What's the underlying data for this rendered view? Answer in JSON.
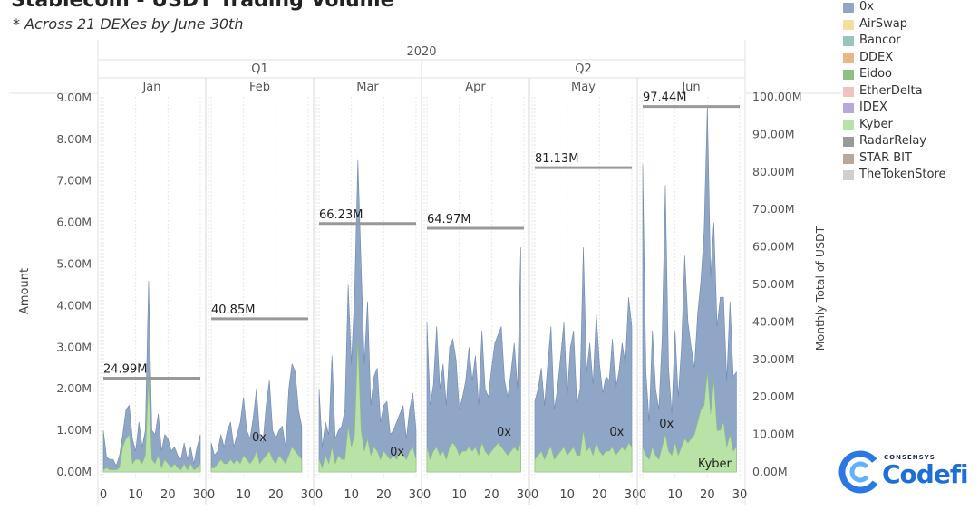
{
  "title": "Stablecoin - USDT Trading Volume",
  "subtitle": "* Across 21 DEXes by June 30th",
  "legend": [
    {
      "label": "0x",
      "color": "#8fa6c7"
    },
    {
      "label": "AirSwap",
      "color": "#f3e0a0"
    },
    {
      "label": "Bancor",
      "color": "#99c3bd"
    },
    {
      "label": "DDEX",
      "color": "#e9b787"
    },
    {
      "label": "Eidoo",
      "color": "#8fbf86"
    },
    {
      "label": "EtherDelta",
      "color": "#f2c2c0"
    },
    {
      "label": "IDEX",
      "color": "#b8a8da"
    },
    {
      "label": "Kyber",
      "color": "#b8e2a6"
    },
    {
      "label": "RadarRelay",
      "color": "#9a9a9a"
    },
    {
      "label": "STAR BIT",
      "color": "#b9a799"
    },
    {
      "label": "TheTokenStore",
      "color": "#cfcfcf"
    }
  ],
  "logo": {
    "top": "CONSENSYS",
    "name": "Codefi"
  },
  "chart_data": {
    "type": "area",
    "year": "2020",
    "quarters": [
      "Q1",
      "Q2"
    ],
    "months": [
      "Jan",
      "Feb",
      "Mar",
      "Apr",
      "May",
      "Jun"
    ],
    "ylabel": "Amount",
    "y2label": "Monthly Total of USDT",
    "ylim": [
      0,
      9500000
    ],
    "y2lim": [
      0,
      100000000
    ],
    "yticks": [
      "0.00M",
      "1.00M",
      "2.00M",
      "3.00M",
      "4.00M",
      "5.00M",
      "6.00M",
      "7.00M",
      "8.00M",
      "9.00M"
    ],
    "y2ticks": [
      "0.00M",
      "10.00M",
      "20.00M",
      "30.00M",
      "40.00M",
      "50.00M",
      "60.00M",
      "70.00M",
      "80.00M",
      "90.00M",
      "100.00M"
    ],
    "xticks": [
      "0",
      "10",
      "20",
      "30"
    ],
    "monthly_totals": [
      {
        "month": "Jan",
        "value": 24990000,
        "label": "24.99M"
      },
      {
        "month": "Feb",
        "value": 40850000,
        "label": "40.85M"
      },
      {
        "month": "Mar",
        "value": 66230000,
        "label": "66.23M"
      },
      {
        "month": "Apr",
        "value": 64970000,
        "label": "64.97M"
      },
      {
        "month": "May",
        "value": 81130000,
        "label": "81.13M"
      },
      {
        "month": "Jun",
        "value": 97440000,
        "label": "97.44M"
      }
    ],
    "series": [
      {
        "name": "0x",
        "days": [
          [
            1,
            0.35,
            0.3,
            0.3,
            0.15,
            0.4,
            0.9,
            1.5,
            1.6,
            0.8,
            0.5,
            1.2,
            0.6,
            1.0,
            4.6,
            1.0,
            0.9,
            1.4,
            0.5,
            0.9,
            0.8,
            0.5,
            0.6,
            0.4,
            0.3,
            0.7,
            0.3,
            0.6,
            0.2,
            0.6,
            0.9
          ],
          [
            0.7,
            0.4,
            0.5,
            0.9,
            0.6,
            1.0,
            1.2,
            0.6,
            0.9,
            1.2,
            1.8,
            1.0,
            0.8,
            1.3,
            2.0,
            0.9,
            0.7,
            1.6,
            2.2,
            1.0,
            0.8,
            1.0,
            1.1,
            0.6,
            2.0,
            2.6,
            2.4,
            1.5,
            1.1
          ],
          [
            2.0,
            0.6,
            1.2,
            0.9,
            2.8,
            0.8,
            1.0,
            1.1,
            1.5,
            4.5,
            2.6,
            4.3,
            7.5,
            5.0,
            2.6,
            4.1,
            1.6,
            2.3,
            2.5,
            1.2,
            1.6,
            1.7,
            0.9,
            1.0,
            1.2,
            1.4,
            1.6,
            0.8,
            1.5,
            1.9,
            1.0
          ],
          [
            3.6,
            1.6,
            2.1,
            3.5,
            2.0,
            2.6,
            1.6,
            3.0,
            3.2,
            2.7,
            1.5,
            1.8,
            2.2,
            3.0,
            2.2,
            2.8,
            1.6,
            3.4,
            2.0,
            1.8,
            2.5,
            3.1,
            3.3,
            3.5,
            2.2,
            1.8,
            2.4,
            3.1,
            2.0,
            5.4
          ],
          [
            1.7,
            2.0,
            2.5,
            1.6,
            2.6,
            3.5,
            1.5,
            2.0,
            2.8,
            3.6,
            1.8,
            3.0,
            3.4,
            1.6,
            2.0,
            5.4,
            2.4,
            3.1,
            2.1,
            3.8,
            2.6,
            1.9,
            2.3,
            2.2,
            3.2,
            2.0,
            2.4,
            3.1,
            2.6,
            4.2,
            3.5
          ],
          [
            7.4,
            2.4,
            1.2,
            3.4,
            2.0,
            1.5,
            3.2,
            6.9,
            2.5,
            1.4,
            3.4,
            1.8,
            3.0,
            5.2,
            3.6,
            3.0,
            2.5,
            3.8,
            4.6,
            5.8,
            8.8,
            4.7,
            6.0,
            3.5,
            4.2,
            4.2,
            2.2,
            4.1,
            2.3,
            2.4
          ]
        ]
      },
      {
        "name": "Kyber",
        "days": [
          [
            0.05,
            0.1,
            0.05,
            0.05,
            0.05,
            0.1,
            0.6,
            0.8,
            0.9,
            0.2,
            0.3,
            0.3,
            0.2,
            0.4,
            2.2,
            0.3,
            0.2,
            0.4,
            0.1,
            0.3,
            0.2,
            0.1,
            0.2,
            0.1,
            0.05,
            0.2,
            0.05,
            0.2,
            0.05,
            0.1,
            0.2
          ],
          [
            0.1,
            0.1,
            0.2,
            0.3,
            0.2,
            0.2,
            0.3,
            0.2,
            0.3,
            0.2,
            0.4,
            0.3,
            0.2,
            0.3,
            0.5,
            0.2,
            0.3,
            0.4,
            0.5,
            0.3,
            0.2,
            0.4,
            0.3,
            0.2,
            0.4,
            0.6,
            0.5,
            0.4,
            0.3
          ],
          [
            0.3,
            0.1,
            0.4,
            0.2,
            0.6,
            0.2,
            0.4,
            0.3,
            0.3,
            1.1,
            0.6,
            0.9,
            3.2,
            1.0,
            0.5,
            0.8,
            0.4,
            0.6,
            0.5,
            0.3,
            0.5,
            0.4,
            0.3,
            0.4,
            0.3,
            0.5,
            0.4,
            0.3,
            0.5,
            0.6,
            0.3
          ],
          [
            0.6,
            0.3,
            0.5,
            0.6,
            0.4,
            0.5,
            0.3,
            0.6,
            0.7,
            0.6,
            0.4,
            0.5,
            0.5,
            0.6,
            0.5,
            0.6,
            0.4,
            0.7,
            0.5,
            0.4,
            0.5,
            0.6,
            0.7,
            0.6,
            0.5,
            0.4,
            0.5,
            0.6,
            0.5,
            0.7
          ],
          [
            0.3,
            0.4,
            0.5,
            0.3,
            0.5,
            0.6,
            0.3,
            0.4,
            0.5,
            0.6,
            0.4,
            0.5,
            0.6,
            0.4,
            0.4,
            1.0,
            0.5,
            0.6,
            0.4,
            0.7,
            0.5,
            0.4,
            0.5,
            0.5,
            0.6,
            0.4,
            0.5,
            0.6,
            0.5,
            0.7,
            0.6
          ],
          [
            0.6,
            0.4,
            0.3,
            0.6,
            0.4,
            0.3,
            0.6,
            0.9,
            0.5,
            0.4,
            0.7,
            0.4,
            0.6,
            0.8,
            0.7,
            0.8,
            0.9,
            1.2,
            1.5,
            1.6,
            2.4,
            1.4,
            2.2,
            1.0,
            1.0,
            1.2,
            0.6,
            0.9,
            0.5,
            0.6
          ]
        ]
      }
    ],
    "annotations": [
      {
        "month": "Feb",
        "text": "0x"
      },
      {
        "month": "Mar",
        "text": "0x"
      },
      {
        "month": "Apr",
        "text": "0x"
      },
      {
        "month": "May",
        "text": "0x"
      },
      {
        "month": "Jun",
        "text": "0x"
      },
      {
        "month": "Jun",
        "text": "Kyber"
      }
    ]
  }
}
